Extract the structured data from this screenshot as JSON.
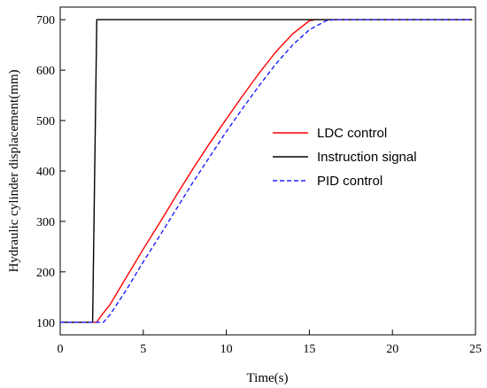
{
  "chart_data": {
    "type": "line",
    "title": "",
    "xlabel": "Time(s)",
    "ylabel": "Hydraulic cylinder displacement(mm)",
    "xlim": [
      0,
      25
    ],
    "ylim": [
      75,
      725
    ],
    "xticks": [
      0,
      5,
      10,
      15,
      20,
      25
    ],
    "yticks": [
      100,
      200,
      300,
      400,
      500,
      600,
      700
    ],
    "xtick_labels": [
      "0",
      "5",
      "10",
      "15",
      "20",
      "25"
    ],
    "ytick_labels": [
      "100",
      "200",
      "300",
      "400",
      "500",
      "600",
      "700"
    ],
    "grid": false,
    "legend_position": "center-right",
    "series": [
      {
        "name": "LDC control",
        "color": "#ff0000",
        "dash": "solid",
        "points": [
          [
            0,
            100
          ],
          [
            2.2,
            100
          ],
          [
            2.4,
            110
          ],
          [
            3,
            135
          ],
          [
            4,
            190
          ],
          [
            5,
            245
          ],
          [
            6,
            298
          ],
          [
            7,
            352
          ],
          [
            8,
            405
          ],
          [
            9,
            455
          ],
          [
            10,
            503
          ],
          [
            11,
            550
          ],
          [
            12,
            595
          ],
          [
            13,
            637
          ],
          [
            14,
            672
          ],
          [
            15,
            698
          ],
          [
            15.4,
            700
          ],
          [
            24.8,
            700
          ]
        ]
      },
      {
        "name": "Instruction signal",
        "color": "#000000",
        "dash": "solid",
        "points": [
          [
            0,
            100
          ],
          [
            1.95,
            100
          ],
          [
            2.2,
            700
          ],
          [
            24.8,
            700
          ]
        ]
      },
      {
        "name": "PID control",
        "color": "#1f1fff",
        "dash": "dashed",
        "points": [
          [
            0,
            100
          ],
          [
            2.6,
            100
          ],
          [
            3,
            115
          ],
          [
            4,
            165
          ],
          [
            5,
            220
          ],
          [
            6,
            272
          ],
          [
            7,
            325
          ],
          [
            8,
            378
          ],
          [
            9,
            428
          ],
          [
            10,
            478
          ],
          [
            11,
            525
          ],
          [
            12,
            570
          ],
          [
            13,
            613
          ],
          [
            14,
            650
          ],
          [
            15,
            680
          ],
          [
            16,
            698
          ],
          [
            16.5,
            700
          ],
          [
            24.8,
            700
          ]
        ]
      }
    ]
  }
}
